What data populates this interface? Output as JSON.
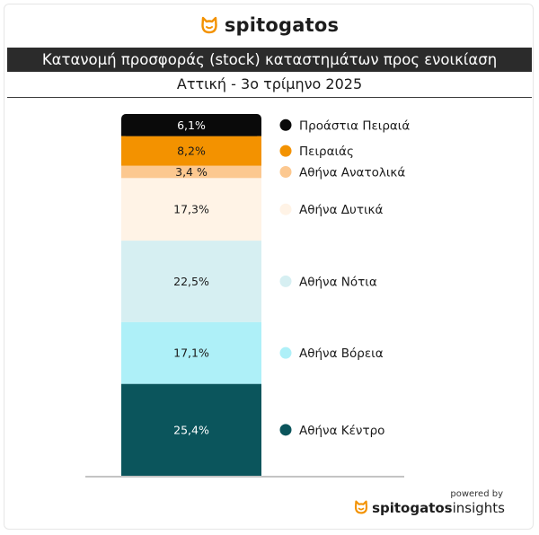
{
  "brand": {
    "name": "spitogatos",
    "icon": "cat-logo-icon",
    "color": "#f39200"
  },
  "header": {
    "title": "Κατανομή προσφοράς (stock) καταστημάτων προς ενοικίαση",
    "subtitle": "Αττική - 3ο τρίμηνο 2025"
  },
  "chart_data": {
    "type": "bar",
    "stacked": true,
    "title": "Κατανομή προσφοράς (stock) καταστημάτων προς ενοικίαση",
    "subtitle": "Αττική - 3ο τρίμηνο 2025",
    "unit": "%",
    "ylim": [
      0,
      100
    ],
    "legend_position": "right",
    "series": [
      {
        "name": "Αθήνα Κέντρο",
        "value": 25.4,
        "label": "25,4%",
        "color": "#0b555c",
        "text_color": "#ffffff"
      },
      {
        "name": "Αθήνα Βόρεια",
        "value": 17.1,
        "label": "17,1%",
        "color": "#aef0f8",
        "text_color": "#1a1a1a"
      },
      {
        "name": "Αθήνα Νότια",
        "value": 22.5,
        "label": "22,5%",
        "color": "#d6eff2",
        "text_color": "#1a1a1a"
      },
      {
        "name": "Αθήνα Δυτικά",
        "value": 17.3,
        "label": "17,3%",
        "color": "#fff3e6",
        "text_color": "#1a1a1a"
      },
      {
        "name": "Αθήνα Ανατολικά",
        "value": 3.4,
        "label": "3,4 %",
        "color": "#fcc890",
        "text_color": "#1a1a1a"
      },
      {
        "name": "Πειραιάς",
        "value": 8.2,
        "label": "8,2%",
        "color": "#f39200",
        "text_color": "#1a1a1a"
      },
      {
        "name": "Προάστια Πειραιά",
        "value": 6.1,
        "label": "6,1%",
        "color": "#0a0a0a",
        "text_color": "#ffffff"
      }
    ]
  },
  "footer": {
    "powered_by": "powered by",
    "brand_bold": "spitogatos",
    "brand_light": "insights"
  }
}
